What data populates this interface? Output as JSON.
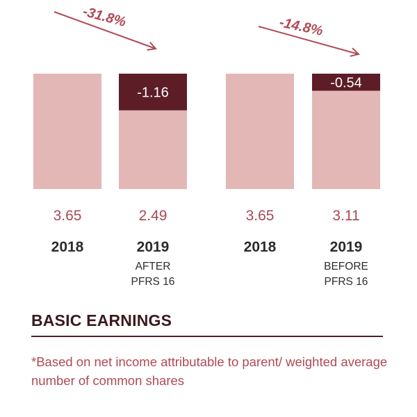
{
  "chart_data": {
    "type": "bar",
    "groups": [
      {
        "change_label": "-31.8%",
        "bars": [
          {
            "value": 3.65,
            "value_label": "3.65",
            "year": "2018",
            "sublabel": [
              "",
              ""
            ],
            "decrease": null
          },
          {
            "value": 2.49,
            "value_label": "2.49",
            "year": "2019",
            "sublabel": [
              "AFTER",
              "PFRS 16"
            ],
            "decrease": -1.16,
            "decrease_label": "-1.16"
          }
        ]
      },
      {
        "change_label": "-14.8%",
        "bars": [
          {
            "value": 3.65,
            "value_label": "3.65",
            "year": "2018",
            "sublabel": [
              "",
              ""
            ],
            "decrease": null
          },
          {
            "value": 3.11,
            "value_label": "3.11",
            "year": "2019",
            "sublabel": [
              "BEFORE",
              "PFRS 16"
            ],
            "decrease": -0.54,
            "decrease_label": "-0.54"
          }
        ]
      }
    ],
    "ylim": [
      0,
      3.65
    ],
    "colors": {
      "bar": "#e2b7b6",
      "decrease": "#5c1d27",
      "accent": "#b04a55"
    }
  },
  "title": "BASIC EARNINGS",
  "note": "*Based on net income attributable to parent/ weighted average number of common shares"
}
